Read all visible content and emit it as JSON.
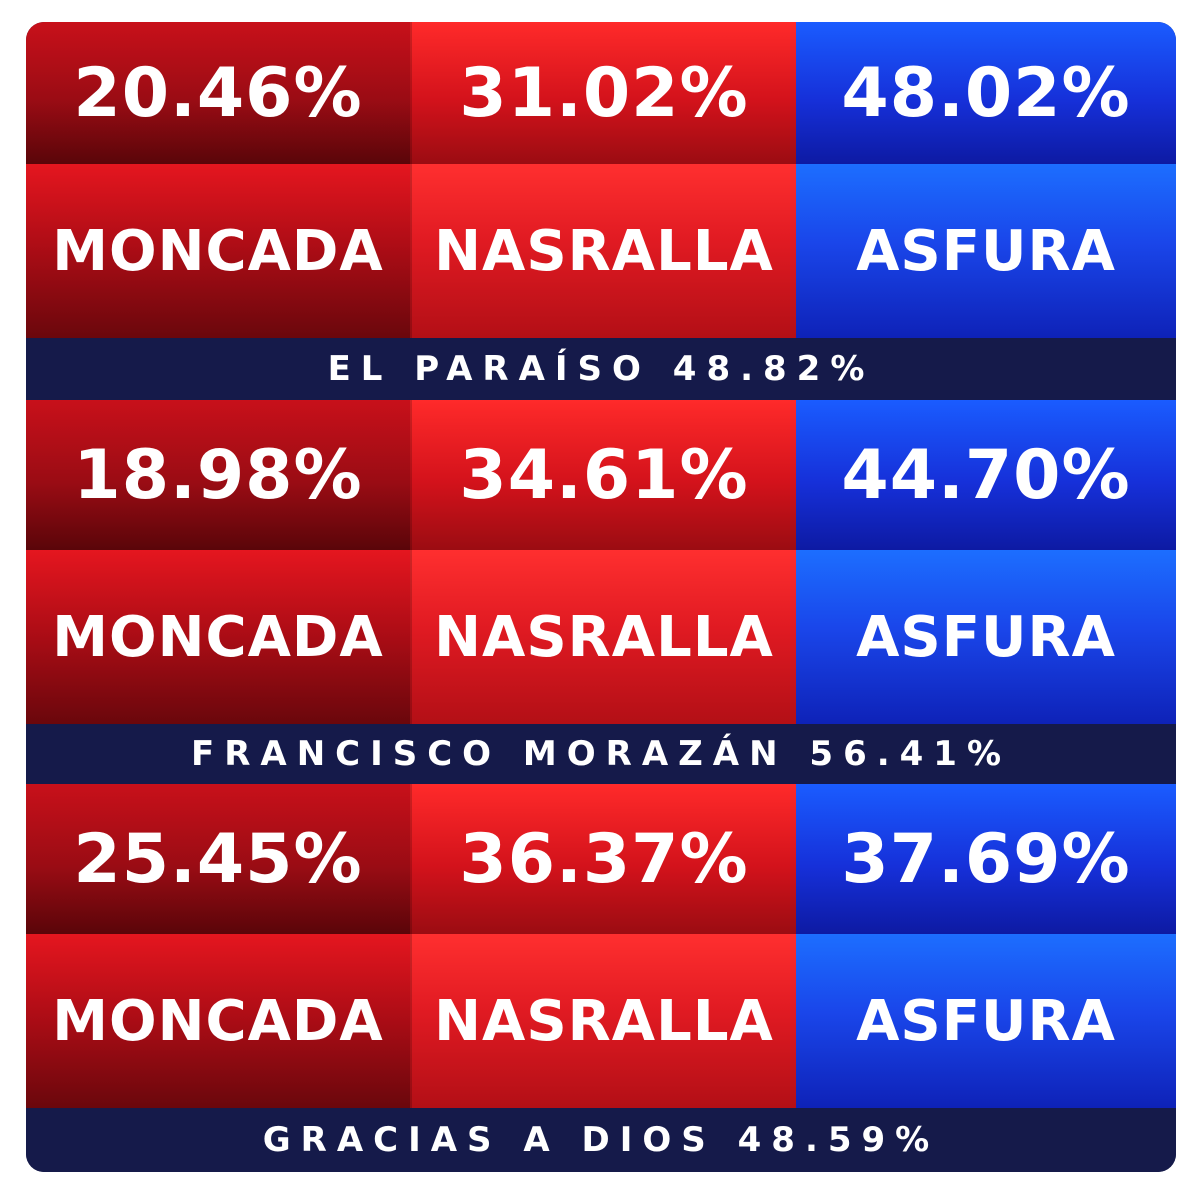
{
  "regions": [
    {
      "label": "EL PARAÍSO 48.82%",
      "candidates": [
        {
          "name": "MONCADA",
          "percent": "20.46%"
        },
        {
          "name": "NASRALLA",
          "percent": "31.02%"
        },
        {
          "name": "ASFURA",
          "percent": "48.02%"
        }
      ]
    },
    {
      "label": "FRANCISCO MORAZÁN 56.41%",
      "candidates": [
        {
          "name": "MONCADA",
          "percent": "18.98%"
        },
        {
          "name": "NASRALLA",
          "percent": "34.61%"
        },
        {
          "name": "ASFURA",
          "percent": "44.70%"
        }
      ]
    },
    {
      "label": "GRACIAS A DIOS 48.59%",
      "candidates": [
        {
          "name": "MONCADA",
          "percent": "25.45%"
        },
        {
          "name": "NASRALLA",
          "percent": "36.37%"
        },
        {
          "name": "ASFURA",
          "percent": "37.69%"
        }
      ]
    }
  ],
  "colors": {
    "moncada": "#a00d16",
    "nasralla": "#e01a22",
    "asfura": "#1a46ea",
    "label_bar": "#151a4a",
    "text": "#ffffff"
  }
}
